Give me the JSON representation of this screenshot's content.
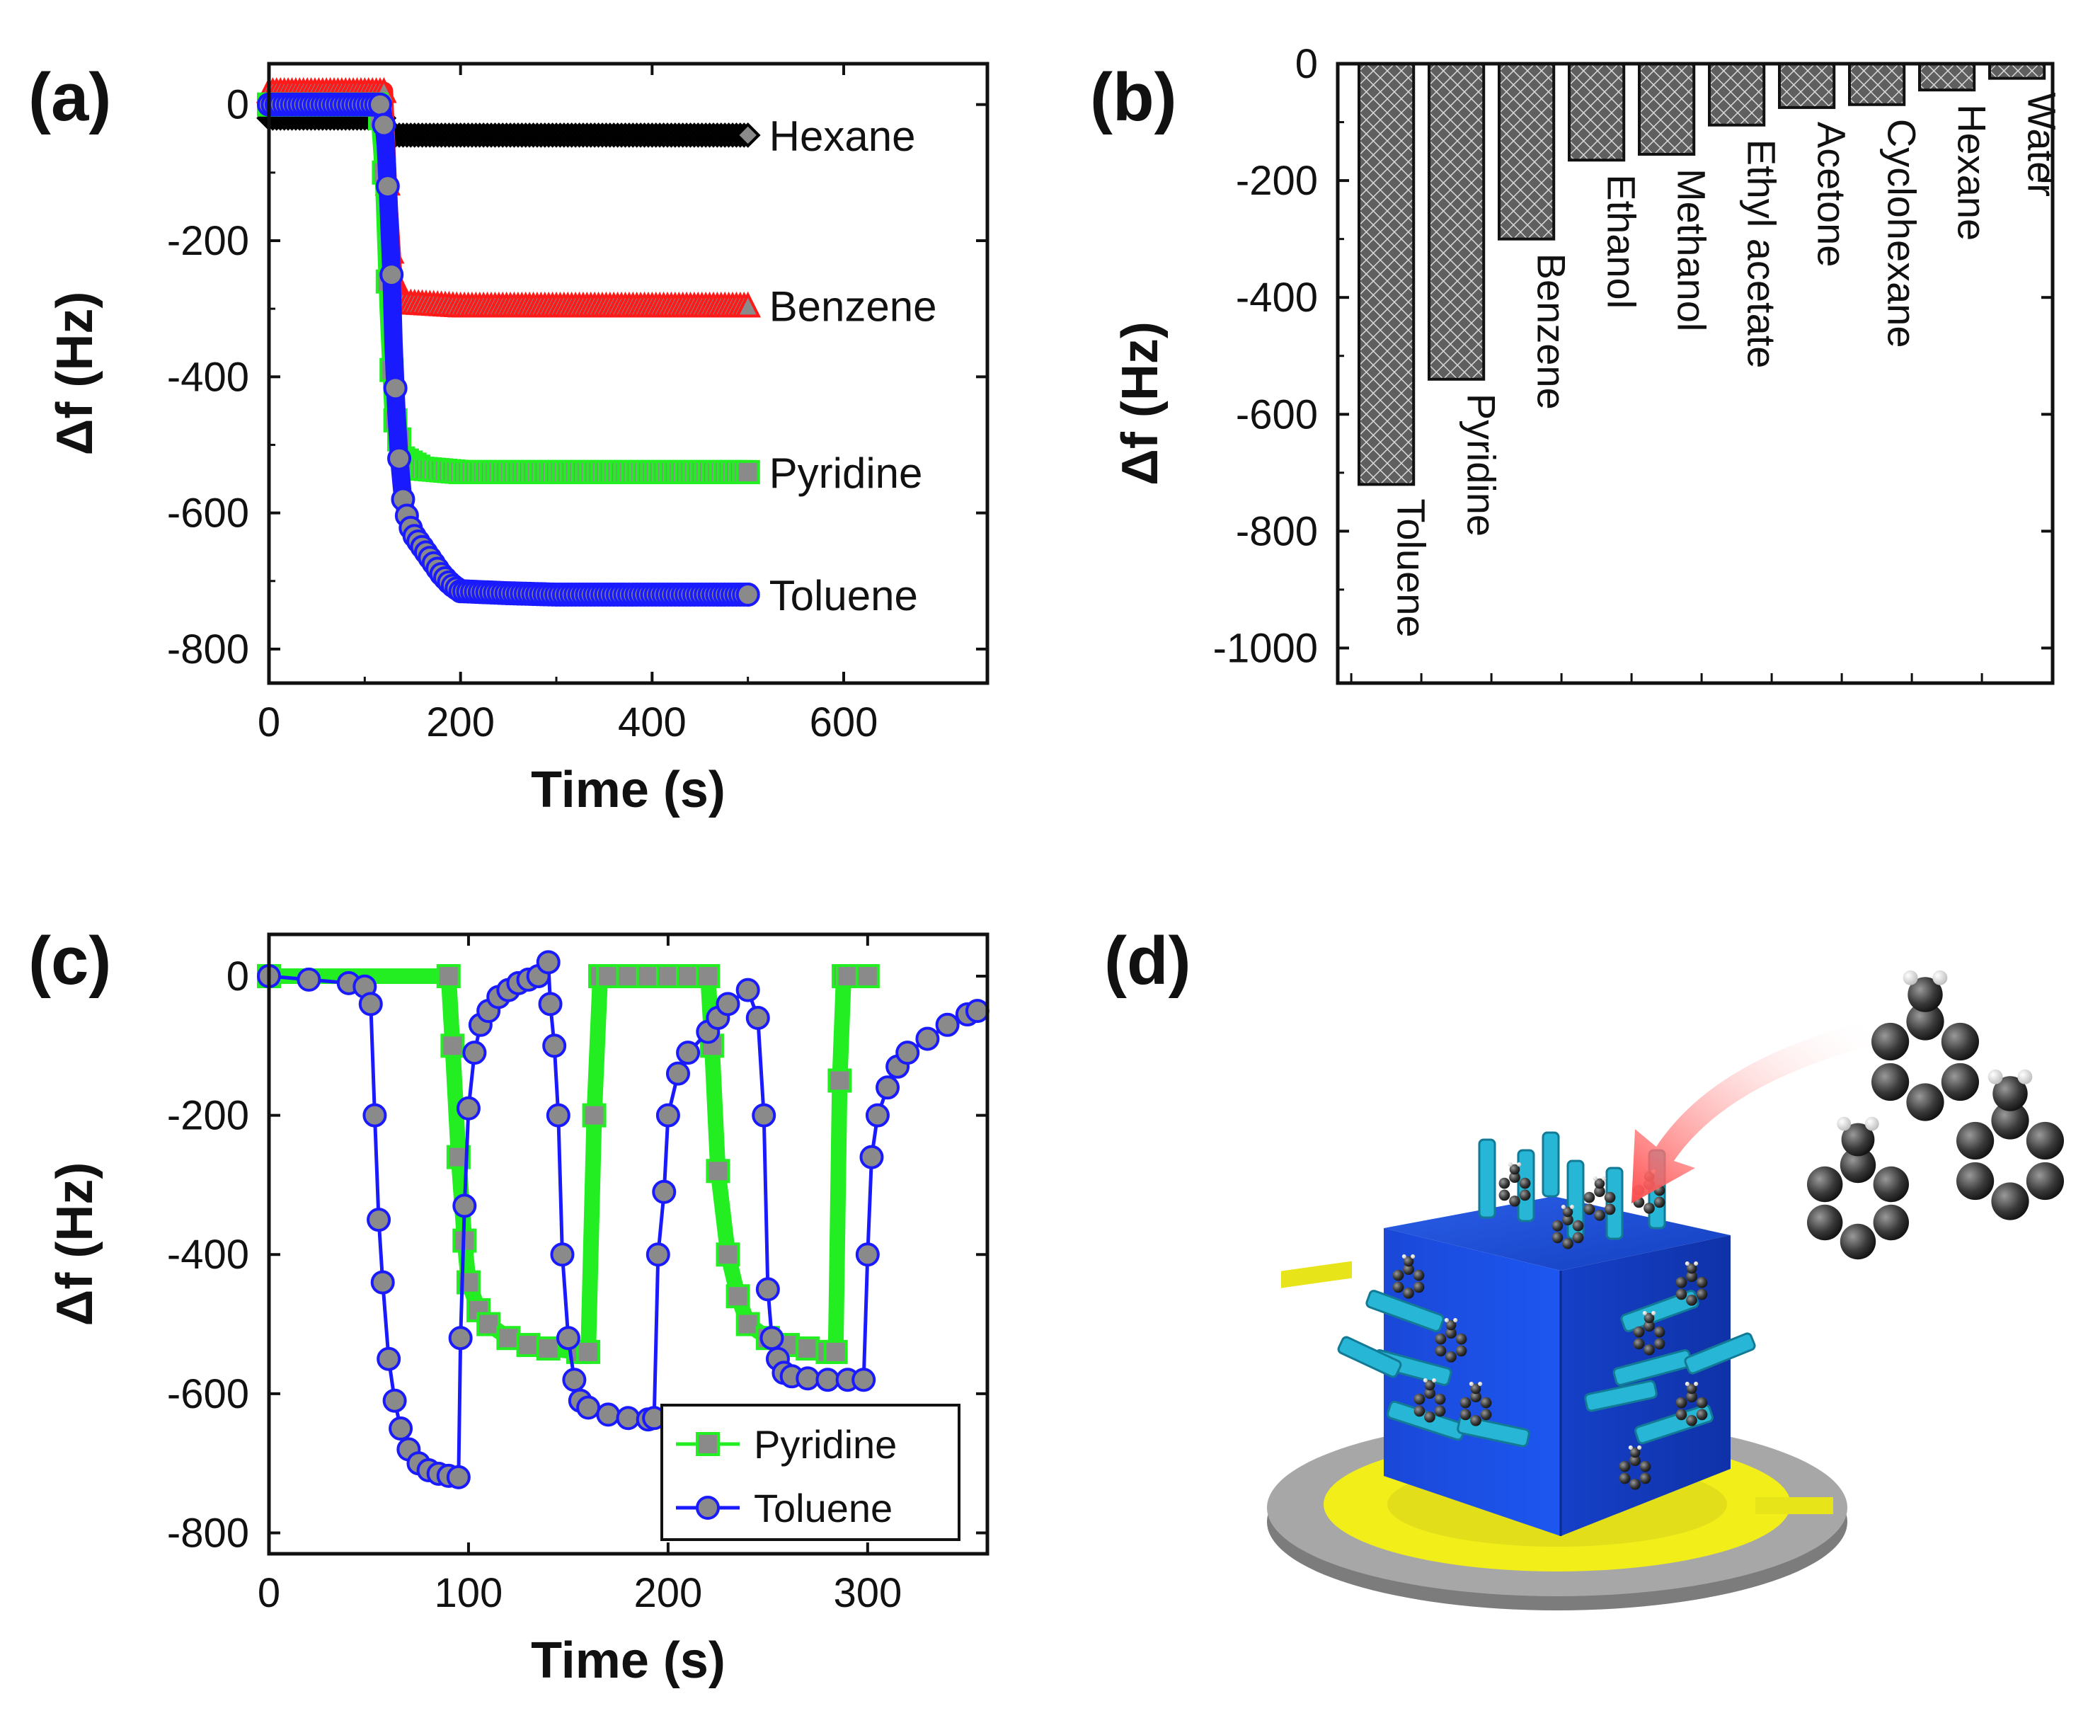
{
  "panels": {
    "a": "(a)",
    "b": "(b)",
    "c": "(c)",
    "d": "(d)"
  },
  "colors": {
    "hexane": "#000000",
    "benzene": "#ff1a1a",
    "pyridine": "#22ee22",
    "toluene": "#1a1aff",
    "marker_fill": "#8a8a8a",
    "bar_fill": "#6a6a6a",
    "cube": "#1f4fd8",
    "substrate_gold": "#f2ee1a",
    "substrate_grey": "#9a9a9a",
    "arrow": "#ff5a5a"
  },
  "chart_data": [
    {
      "id": "a",
      "type": "line",
      "title": "",
      "xlabel": "Time (s)",
      "ylabel": "Δf (Hz)",
      "xlim": [
        0,
        750
      ],
      "ylim": [
        -850,
        60
      ],
      "xticks": [
        0,
        200,
        400,
        600
      ],
      "yticks": [
        0,
        -200,
        -400,
        -600,
        -800
      ],
      "series": [
        {
          "name": "Hexane",
          "color": "#000000",
          "x": [
            0,
            120,
            125,
            130,
            140,
            200,
            300,
            400,
            500
          ],
          "y": [
            -20,
            -20,
            -40,
            -45,
            -45,
            -45,
            -45,
            -45,
            -45
          ]
        },
        {
          "name": "Benzene",
          "color": "#ff1a1a",
          "x": [
            0,
            120,
            125,
            130,
            140,
            200,
            300,
            400,
            500
          ],
          "y": [
            20,
            20,
            -150,
            -260,
            -290,
            -295,
            -295,
            -295,
            -295
          ]
        },
        {
          "name": "Pyridine",
          "color": "#22ee22",
          "x": [
            0,
            115,
            120,
            125,
            130,
            140,
            160,
            200,
            300,
            400,
            500
          ],
          "y": [
            0,
            0,
            -100,
            -300,
            -450,
            -520,
            -535,
            -540,
            -540,
            -540,
            -540
          ]
        },
        {
          "name": "Toluene",
          "color": "#1a1aff",
          "x": [
            0,
            118,
            122,
            125,
            128,
            130,
            133,
            136,
            140,
            145,
            150,
            160,
            170,
            180,
            190,
            200,
            250,
            300,
            400,
            500
          ],
          "y": [
            0,
            0,
            -60,
            -150,
            -250,
            -350,
            -450,
            -520,
            -580,
            -610,
            -630,
            -650,
            -670,
            -690,
            -705,
            -715,
            -718,
            -720,
            -720,
            -720
          ]
        }
      ],
      "annotations": [
        "Hexane",
        "Benzene",
        "Pyridine",
        "Toluene"
      ]
    },
    {
      "id": "b",
      "type": "bar",
      "title": "",
      "xlabel": "",
      "ylabel": "Δf (Hz)",
      "ylim": [
        -1060,
        0
      ],
      "yticks": [
        0,
        -200,
        -400,
        -600,
        -800,
        -1000
      ],
      "categories": [
        "Toluene",
        "Pyridine",
        "Benzene",
        "Ethanol",
        "Methanol",
        "Ethyl acetate",
        "Acetone",
        "Cyclohexane",
        "Hexane",
        "Water"
      ],
      "values": [
        -720,
        -540,
        -300,
        -165,
        -155,
        -105,
        -75,
        -70,
        -45,
        -25
      ]
    },
    {
      "id": "c",
      "type": "line",
      "title": "",
      "xlabel": "Time (s)",
      "ylabel": "Δf (Hz)",
      "xlim": [
        0,
        360
      ],
      "ylim": [
        -830,
        60
      ],
      "xticks": [
        0,
        100,
        200,
        300
      ],
      "yticks": [
        0,
        -200,
        -400,
        -600,
        -800
      ],
      "legend_position": "bottom-right",
      "series": [
        {
          "name": "Pyridine",
          "color": "#22ee22",
          "x": [
            0,
            90,
            92,
            95,
            98,
            100,
            105,
            110,
            120,
            130,
            140,
            155,
            160,
            163,
            166,
            170,
            180,
            190,
            200,
            210,
            220,
            222,
            225,
            230,
            235,
            240,
            250,
            260,
            270,
            280,
            284,
            286,
            288,
            290,
            300
          ],
          "y": [
            0,
            0,
            -100,
            -260,
            -380,
            -440,
            -480,
            -500,
            -520,
            -530,
            -535,
            -540,
            -540,
            -200,
            0,
            0,
            0,
            0,
            0,
            0,
            0,
            -100,
            -280,
            -400,
            -460,
            -500,
            -520,
            -530,
            -535,
            -540,
            -540,
            -150,
            0,
            0,
            0
          ]
        },
        {
          "name": "Toluene",
          "color": "#1a1aff",
          "x": [
            0,
            20,
            40,
            48,
            51,
            53,
            55,
            57,
            60,
            63,
            66,
            70,
            75,
            80,
            85,
            90,
            95,
            96,
            98,
            100,
            103,
            106,
            110,
            115,
            120,
            125,
            130,
            135,
            140,
            141,
            143,
            145,
            147,
            150,
            153,
            156,
            160,
            170,
            180,
            190,
            193,
            195,
            198,
            200,
            205,
            210,
            220,
            225,
            230,
            240,
            245,
            248,
            250,
            252,
            255,
            258,
            262,
            270,
            280,
            290,
            298,
            300,
            302,
            305,
            310,
            315,
            320,
            330,
            340,
            350,
            355
          ],
          "y": [
            0,
            -5,
            -10,
            -15,
            -40,
            -200,
            -350,
            -440,
            -550,
            -610,
            -650,
            -680,
            -700,
            -710,
            -715,
            -718,
            -720,
            -520,
            -330,
            -190,
            -110,
            -70,
            -50,
            -30,
            -20,
            -10,
            -5,
            0,
            20,
            -40,
            -100,
            -200,
            -400,
            -520,
            -580,
            -610,
            -620,
            -630,
            -635,
            -637,
            -635,
            -400,
            -310,
            -200,
            -140,
            -110,
            -80,
            -60,
            -40,
            -20,
            -60,
            -200,
            -450,
            -520,
            -550,
            -570,
            -575,
            -578,
            -580,
            -580,
            -580,
            -400,
            -260,
            -200,
            -160,
            -130,
            -110,
            -90,
            -70,
            -55,
            -50
          ]
        }
      ]
    }
  ],
  "illustration": {
    "name": "toluene adsorption on functionalized cube on sensor substrate",
    "molecules": 3
  }
}
